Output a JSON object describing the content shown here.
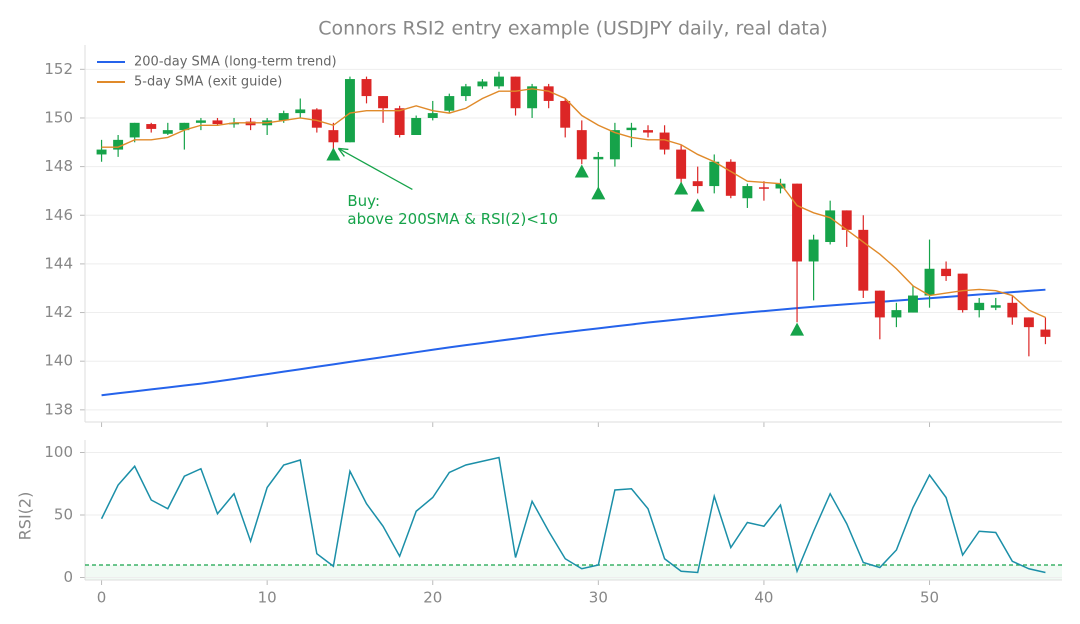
{
  "chart_data": [
    {
      "type": "candlestick",
      "title": "Connors RSI2 entry example (USDJPY daily, real data)",
      "x": [
        0,
        1,
        2,
        3,
        4,
        5,
        6,
        7,
        8,
        9,
        10,
        11,
        12,
        13,
        14,
        15,
        16,
        17,
        18,
        19,
        20,
        21,
        22,
        23,
        24,
        25,
        26,
        27,
        28,
        29,
        30,
        31,
        32,
        33,
        34,
        35,
        36,
        37,
        38,
        39,
        40,
        41,
        42,
        43,
        44,
        45,
        46,
        47,
        48,
        49,
        50,
        51,
        52,
        53,
        54,
        55,
        56,
        57
      ],
      "open": [
        148.5,
        148.7,
        149.2,
        149.75,
        149.35,
        149.5,
        149.8,
        149.9,
        149.75,
        149.85,
        149.7,
        149.9,
        150.2,
        150.35,
        149.5,
        149.0,
        151.6,
        150.9,
        150.4,
        149.3,
        150.0,
        150.3,
        150.9,
        151.3,
        151.3,
        151.7,
        150.4,
        151.3,
        150.7,
        149.5,
        148.3,
        148.3,
        149.5,
        149.5,
        149.4,
        148.7,
        147.4,
        147.2,
        148.2,
        146.7,
        147.15,
        147.1,
        147.3,
        144.1,
        144.9,
        146.2,
        145.4,
        142.9,
        141.8,
        142.0,
        142.7,
        143.8,
        143.6,
        142.1,
        142.2,
        142.4,
        141.8,
        141.3
      ],
      "high": [
        149.1,
        149.3,
        149.8,
        149.8,
        149.8,
        149.8,
        150.0,
        150.0,
        150.0,
        150.0,
        150.0,
        150.3,
        150.8,
        150.4,
        149.8,
        151.7,
        151.7,
        150.9,
        150.5,
        150.1,
        150.7,
        151.0,
        151.4,
        151.6,
        151.9,
        151.7,
        151.4,
        151.4,
        150.8,
        149.9,
        148.6,
        149.8,
        149.8,
        149.7,
        149.7,
        148.9,
        148.0,
        148.5,
        148.3,
        147.3,
        147.4,
        147.5,
        147.3,
        145.2,
        146.6,
        146.2,
        146.0,
        142.9,
        142.4,
        143.1,
        145.0,
        144.1,
        143.6,
        142.6,
        142.6,
        142.7,
        141.8,
        141.8
      ],
      "low": [
        148.2,
        148.4,
        149.0,
        149.4,
        149.3,
        148.7,
        149.5,
        149.7,
        149.6,
        149.5,
        149.3,
        149.8,
        150.0,
        149.4,
        148.7,
        149.0,
        150.6,
        149.8,
        149.2,
        149.3,
        149.9,
        150.2,
        150.7,
        151.2,
        151.2,
        150.1,
        150.0,
        150.4,
        149.2,
        148.1,
        147.1,
        148.0,
        148.8,
        149.2,
        148.5,
        147.3,
        146.9,
        146.9,
        146.7,
        146.3,
        146.6,
        146.9,
        141.6,
        142.5,
        144.8,
        144.7,
        142.6,
        140.9,
        141.4,
        142.0,
        142.2,
        143.3,
        142.0,
        141.8,
        142.1,
        141.5,
        140.2,
        140.7
      ],
      "close": [
        148.7,
        149.1,
        149.8,
        149.55,
        149.5,
        149.8,
        149.9,
        149.75,
        149.8,
        149.7,
        149.9,
        150.2,
        150.35,
        149.6,
        149.0,
        151.6,
        150.9,
        150.4,
        149.3,
        150.0,
        150.2,
        150.9,
        151.3,
        151.5,
        151.7,
        150.4,
        151.3,
        150.7,
        149.6,
        148.3,
        148.4,
        149.5,
        149.6,
        149.4,
        148.7,
        147.5,
        147.2,
        148.2,
        146.8,
        147.2,
        147.1,
        147.3,
        144.1,
        145.0,
        146.2,
        145.4,
        142.9,
        141.8,
        142.1,
        142.7,
        143.8,
        143.5,
        142.1,
        142.4,
        142.3,
        141.8,
        141.4,
        141.0
      ],
      "up_color": "#16a34a",
      "down_color": "#dc2626",
      "series": [
        {
          "name": "200-day SMA (long-term trend)",
          "color": "#2563eb",
          "values": [
            138.6,
            138.68,
            138.76,
            138.84,
            138.92,
            139.0,
            139.08,
            139.17,
            139.27,
            139.37,
            139.47,
            139.57,
            139.67,
            139.77,
            139.87,
            139.97,
            140.07,
            140.17,
            140.27,
            140.37,
            140.47,
            140.57,
            140.66,
            140.75,
            140.84,
            140.93,
            141.02,
            141.11,
            141.19,
            141.27,
            141.35,
            141.43,
            141.51,
            141.59,
            141.66,
            141.73,
            141.8,
            141.87,
            141.94,
            142.0,
            142.06,
            142.12,
            142.18,
            142.24,
            142.29,
            142.34,
            142.39,
            142.44,
            142.49,
            142.54,
            142.59,
            142.64,
            142.69,
            142.74,
            142.79,
            142.84,
            142.89,
            142.94
          ]
        },
        {
          "name": "5-day SMA (exit guide)",
          "color": "#e08a2a",
          "values": [
            148.8,
            148.8,
            149.1,
            149.1,
            149.2,
            149.5,
            149.7,
            149.7,
            149.8,
            149.8,
            149.8,
            149.9,
            150.0,
            149.9,
            149.7,
            150.2,
            150.3,
            150.3,
            150.3,
            150.5,
            150.3,
            150.2,
            150.4,
            150.8,
            151.1,
            151.1,
            151.2,
            151.1,
            150.8,
            150.1,
            149.7,
            149.4,
            149.2,
            149.1,
            149.1,
            148.9,
            148.5,
            148.2,
            147.8,
            147.4,
            147.35,
            147.3,
            146.4,
            146.1,
            145.9,
            145.4,
            144.9,
            144.4,
            143.8,
            143.1,
            142.7,
            142.8,
            142.9,
            142.95,
            142.9,
            142.7,
            142.1,
            141.8
          ]
        }
      ],
      "buy": {
        "x": [
          14,
          29,
          30,
          35,
          36,
          42
        ],
        "y": [
          148.5,
          147.8,
          146.9,
          147.1,
          146.4,
          141.3
        ],
        "color": "#16a34a"
      },
      "annotation": {
        "lines": [
          "Buy:",
          "above 200SMA & RSI(2)<10"
        ],
        "color": "#16a34a"
      },
      "xlim": [
        -1,
        58
      ],
      "ylim": [
        137.5,
        153
      ],
      "yticks": [
        138,
        140,
        142,
        144,
        146,
        148,
        150,
        152
      ],
      "xticks": [
        0,
        10,
        20,
        30,
        40,
        50
      ],
      "grid": true,
      "legend": "upper left"
    },
    {
      "type": "line",
      "ylabel": "RSI(2)",
      "x": [
        0,
        1,
        2,
        3,
        4,
        5,
        6,
        7,
        8,
        9,
        10,
        11,
        12,
        13,
        14,
        15,
        16,
        17,
        18,
        19,
        20,
        21,
        22,
        23,
        24,
        25,
        26,
        27,
        28,
        29,
        30,
        31,
        32,
        33,
        34,
        35,
        36,
        37,
        38,
        39,
        40,
        41,
        42,
        43,
        44,
        45,
        46,
        47,
        48,
        49,
        50,
        51,
        52,
        53,
        54,
        55,
        56,
        57
      ],
      "series": [
        {
          "color": "#1b8fa8",
          "values": [
            47,
            74,
            89,
            62,
            55,
            81,
            87,
            51,
            67,
            29,
            72,
            90,
            94,
            19,
            9,
            85,
            59,
            41,
            17,
            53,
            64,
            84,
            90,
            93,
            96,
            16,
            61,
            37,
            15,
            7,
            10,
            70,
            71,
            55,
            15,
            5,
            4,
            65,
            24,
            44,
            41,
            58,
            5,
            37,
            67,
            43,
            12,
            8,
            22,
            56,
            82,
            64,
            18,
            37,
            36,
            13,
            7,
            4
          ]
        }
      ],
      "threshold": {
        "value": 10,
        "color": "#16a34a"
      },
      "xlim": [
        -1,
        58
      ],
      "ylim": [
        -2,
        110
      ],
      "yticks": [
        0,
        50,
        100
      ],
      "xticks": [
        0,
        10,
        20,
        30,
        40,
        50
      ],
      "grid": true
    }
  ]
}
